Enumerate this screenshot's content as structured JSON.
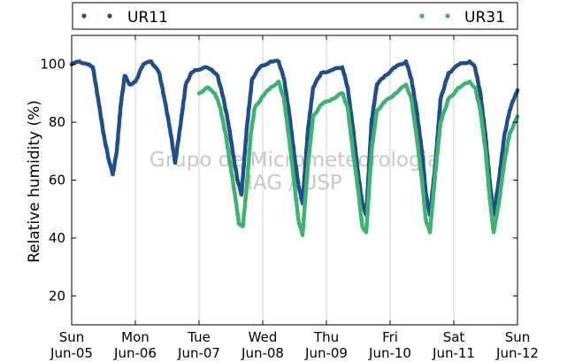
{
  "chart_data": {
    "type": "scatter",
    "ylabel": "Relative humidity (%)",
    "ylim": [
      10,
      110
    ],
    "yticks": [
      20,
      40,
      60,
      80,
      100
    ],
    "xlim": [
      "2016-06-05T00:00",
      "2016-06-12T00:00"
    ],
    "xtick_labels": [
      {
        "day": "Sun",
        "date": "Jun-05"
      },
      {
        "day": "Mon",
        "date": "Jun-06"
      },
      {
        "day": "Tue",
        "date": "Jun-07"
      },
      {
        "day": "Wed",
        "date": "Jun-08"
      },
      {
        "day": "Thu",
        "date": "Jun-09"
      },
      {
        "day": "Fri",
        "date": "Jun-10"
      },
      {
        "day": "Sat",
        "date": "Jun-11"
      },
      {
        "day": "Sun",
        "date": "Jun-12"
      }
    ],
    "grid": "vertical",
    "legend_position": "top",
    "watermark": [
      "Grupo de Micrometeorologia",
      "IAG / USP"
    ],
    "series": [
      {
        "name": "UR11",
        "color": "#1f4e8c",
        "points": [
          [
            "2016-06-05T00:00",
            100
          ],
          [
            "2016-06-05T03:00",
            101
          ],
          [
            "2016-06-05T06:00",
            100
          ],
          [
            "2016-06-05T08:00",
            99
          ],
          [
            "2016-06-05T10:00",
            88
          ],
          [
            "2016-06-05T12:00",
            76
          ],
          [
            "2016-06-05T14:00",
            67
          ],
          [
            "2016-06-05T15:30",
            62
          ],
          [
            "2016-06-05T17:00",
            70
          ],
          [
            "2016-06-05T18:30",
            86
          ],
          [
            "2016-06-05T20:00",
            96
          ],
          [
            "2016-06-05T22:00",
            93
          ],
          [
            "2016-06-06T00:00",
            94
          ],
          [
            "2016-06-06T03:00",
            100
          ],
          [
            "2016-06-06T06:00",
            101
          ],
          [
            "2016-06-06T09:00",
            97
          ],
          [
            "2016-06-06T11:00",
            88
          ],
          [
            "2016-06-06T13:00",
            78
          ],
          [
            "2016-06-06T15:00",
            66
          ],
          [
            "2016-06-06T17:00",
            79
          ],
          [
            "2016-06-06T19:00",
            93
          ],
          [
            "2016-06-06T21:00",
            97
          ],
          [
            "2016-06-06T23:00",
            98
          ],
          [
            "2016-06-07T02:00",
            99
          ],
          [
            "2016-06-07T05:00",
            98
          ],
          [
            "2016-06-07T07:00",
            96
          ],
          [
            "2016-06-07T09:00",
            89
          ],
          [
            "2016-06-07T11:00",
            80
          ],
          [
            "2016-06-07T13:00",
            68
          ],
          [
            "2016-06-07T14:30",
            60
          ],
          [
            "2016-06-07T16:00",
            55
          ],
          [
            "2016-06-07T18:00",
            78
          ],
          [
            "2016-06-07T20:00",
            95
          ],
          [
            "2016-06-07T23:00",
            99
          ],
          [
            "2016-06-08T03:00",
            101
          ],
          [
            "2016-06-08T06:00",
            101
          ],
          [
            "2016-06-08T08:00",
            95
          ],
          [
            "2016-06-08T10:00",
            83
          ],
          [
            "2016-06-08T12:00",
            68
          ],
          [
            "2016-06-08T13:30",
            58
          ],
          [
            "2016-06-08T15:00",
            52
          ],
          [
            "2016-06-08T17:00",
            77
          ],
          [
            "2016-06-08T19:00",
            92
          ],
          [
            "2016-06-08T22:00",
            97
          ],
          [
            "2016-06-09T02:00",
            98
          ],
          [
            "2016-06-09T06:00",
            99
          ],
          [
            "2016-06-09T08:00",
            92
          ],
          [
            "2016-06-09T10:00",
            78
          ],
          [
            "2016-06-09T12:00",
            62
          ],
          [
            "2016-06-09T13:30",
            52
          ],
          [
            "2016-06-09T15:00",
            48
          ],
          [
            "2016-06-09T17:00",
            80
          ],
          [
            "2016-06-09T19:00",
            93
          ],
          [
            "2016-06-09T22:00",
            96
          ],
          [
            "2016-06-10T02:00",
            99
          ],
          [
            "2016-06-10T06:00",
            101
          ],
          [
            "2016-06-10T08:00",
            95
          ],
          [
            "2016-06-10T10:00",
            84
          ],
          [
            "2016-06-10T12:00",
            70
          ],
          [
            "2016-06-10T13:30",
            55
          ],
          [
            "2016-06-10T15:00",
            48
          ],
          [
            "2016-06-10T17:00",
            65
          ],
          [
            "2016-06-10T19:00",
            88
          ],
          [
            "2016-06-10T22:00",
            97
          ],
          [
            "2016-06-11T02:00",
            100
          ],
          [
            "2016-06-11T06:00",
            101
          ],
          [
            "2016-06-11T08:00",
            99
          ],
          [
            "2016-06-11T10:00",
            90
          ],
          [
            "2016-06-11T12:00",
            75
          ],
          [
            "2016-06-11T13:30",
            60
          ],
          [
            "2016-06-11T15:00",
            48
          ],
          [
            "2016-06-11T17:00",
            60
          ],
          [
            "2016-06-11T19:00",
            75
          ],
          [
            "2016-06-11T21:00",
            84
          ],
          [
            "2016-06-11T23:00",
            89
          ],
          [
            "2016-06-12T00:00",
            91
          ]
        ]
      },
      {
        "name": "UR31",
        "color": "#3cb371",
        "points": [
          [
            "2016-06-07T00:00",
            90
          ],
          [
            "2016-06-07T03:00",
            92
          ],
          [
            "2016-06-07T06:00",
            90
          ],
          [
            "2016-06-07T08:00",
            85
          ],
          [
            "2016-06-07T10:00",
            76
          ],
          [
            "2016-06-07T12:00",
            64
          ],
          [
            "2016-06-07T14:00",
            52
          ],
          [
            "2016-06-07T15:00",
            45
          ],
          [
            "2016-06-07T16:30",
            44
          ],
          [
            "2016-06-07T18:00",
            58
          ],
          [
            "2016-06-07T19:30",
            76
          ],
          [
            "2016-06-07T21:00",
            85
          ],
          [
            "2016-06-08T00:00",
            89
          ],
          [
            "2016-06-08T03:00",
            92
          ],
          [
            "2016-06-08T06:00",
            94
          ],
          [
            "2016-06-08T08:00",
            88
          ],
          [
            "2016-06-08T10:00",
            74
          ],
          [
            "2016-06-08T12:00",
            58
          ],
          [
            "2016-06-08T13:30",
            46
          ],
          [
            "2016-06-08T15:00",
            41
          ],
          [
            "2016-06-08T17:00",
            65
          ],
          [
            "2016-06-08T19:00",
            82
          ],
          [
            "2016-06-08T22:00",
            86
          ],
          [
            "2016-06-09T02:00",
            88
          ],
          [
            "2016-06-09T06:00",
            90
          ],
          [
            "2016-06-09T08:00",
            85
          ],
          [
            "2016-06-09T10:00",
            70
          ],
          [
            "2016-06-09T12:00",
            56
          ],
          [
            "2016-06-09T13:30",
            44
          ],
          [
            "2016-06-09T15:00",
            42
          ],
          [
            "2016-06-09T17:00",
            70
          ],
          [
            "2016-06-09T19:00",
            84
          ],
          [
            "2016-06-09T22:00",
            87
          ],
          [
            "2016-06-10T02:00",
            90
          ],
          [
            "2016-06-10T06:00",
            93
          ],
          [
            "2016-06-10T08:00",
            88
          ],
          [
            "2016-06-10T10:00",
            75
          ],
          [
            "2016-06-10T12:00",
            60
          ],
          [
            "2016-06-10T13:30",
            46
          ],
          [
            "2016-06-10T15:00",
            42
          ],
          [
            "2016-06-10T17:00",
            62
          ],
          [
            "2016-06-10T19:00",
            80
          ],
          [
            "2016-06-10T22:00",
            88
          ],
          [
            "2016-06-11T02:00",
            92
          ],
          [
            "2016-06-11T06:00",
            94
          ],
          [
            "2016-06-11T08:00",
            92
          ],
          [
            "2016-06-11T10:00",
            84
          ],
          [
            "2016-06-11T12:00",
            70
          ],
          [
            "2016-06-11T13:30",
            54
          ],
          [
            "2016-06-11T15:00",
            42
          ],
          [
            "2016-06-11T17:00",
            52
          ],
          [
            "2016-06-11T19:00",
            66
          ],
          [
            "2016-06-11T21:00",
            76
          ],
          [
            "2016-06-11T23:00",
            80
          ],
          [
            "2016-06-12T00:00",
            82
          ]
        ]
      }
    ]
  }
}
